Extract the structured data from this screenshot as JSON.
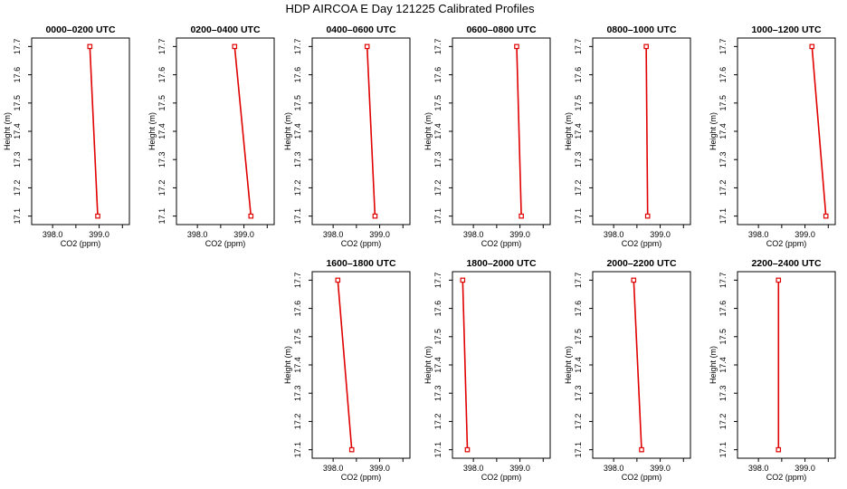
{
  "figure": {
    "title": "HDP AIRCOA E  Day 121225  Calibrated Profiles"
  },
  "chart_data": [
    {
      "type": "line",
      "title": "0000–0200 UTC",
      "xlabel": "CO2 (ppm)",
      "ylabel": "Height (m)",
      "xlim": [
        397.55,
        399.65
      ],
      "ylim": [
        17.07,
        17.73
      ],
      "xticks": [
        398.0,
        398.5,
        399.0,
        399.5
      ],
      "xtick_labels": [
        "398.0",
        "",
        "399.0",
        ""
      ],
      "yticks": [
        17.1,
        17.2,
        17.3,
        17.4,
        17.5,
        17.6,
        17.7
      ],
      "series": [
        {
          "color": "#e00000",
          "points": [
            {
              "x": 398.8,
              "y": 17.7
            },
            {
              "x": 398.97,
              "y": 17.1
            }
          ]
        }
      ]
    },
    {
      "type": "line",
      "title": "0200–0400 UTC",
      "xlabel": "CO2 (ppm)",
      "ylabel": "Height (m)",
      "xlim": [
        397.55,
        399.65
      ],
      "ylim": [
        17.07,
        17.73
      ],
      "xticks": [
        398.0,
        398.5,
        399.0,
        399.5
      ],
      "xtick_labels": [
        "398.0",
        "",
        "399.0",
        ""
      ],
      "yticks": [
        17.1,
        17.2,
        17.3,
        17.4,
        17.5,
        17.6,
        17.7
      ],
      "series": [
        {
          "color": "#e00000",
          "points": [
            {
              "x": 398.8,
              "y": 17.7
            },
            {
              "x": 399.15,
              "y": 17.1
            }
          ]
        }
      ]
    },
    {
      "type": "line",
      "title": "0400–0600 UTC",
      "xlabel": "CO2 (ppm)",
      "ylabel": "Height (m)",
      "xlim": [
        397.55,
        399.65
      ],
      "ylim": [
        17.07,
        17.73
      ],
      "xticks": [
        398.0,
        398.5,
        399.0,
        399.5
      ],
      "xtick_labels": [
        "398.0",
        "",
        "399.0",
        ""
      ],
      "yticks": [
        17.1,
        17.2,
        17.3,
        17.4,
        17.5,
        17.6,
        17.7
      ],
      "series": [
        {
          "color": "#e00000",
          "points": [
            {
              "x": 398.73,
              "y": 17.7
            },
            {
              "x": 398.9,
              "y": 17.1
            }
          ]
        }
      ]
    },
    {
      "type": "line",
      "title": "0600–0800 UTC",
      "xlabel": "CO2 (ppm)",
      "ylabel": "Height (m)",
      "xlim": [
        397.55,
        399.65
      ],
      "ylim": [
        17.07,
        17.73
      ],
      "xticks": [
        398.0,
        398.5,
        399.0,
        399.5
      ],
      "xtick_labels": [
        "398.0",
        "",
        "399.0",
        ""
      ],
      "yticks": [
        17.1,
        17.2,
        17.3,
        17.4,
        17.5,
        17.6,
        17.7
      ],
      "series": [
        {
          "color": "#e00000",
          "points": [
            {
              "x": 398.93,
              "y": 17.7
            },
            {
              "x": 399.03,
              "y": 17.1
            }
          ]
        }
      ]
    },
    {
      "type": "line",
      "title": "0800–1000 UTC",
      "xlabel": "CO2 (ppm)",
      "ylabel": "Height (m)",
      "xlim": [
        397.55,
        399.65
      ],
      "ylim": [
        17.07,
        17.73
      ],
      "xticks": [
        398.0,
        398.5,
        399.0,
        399.5
      ],
      "xtick_labels": [
        "398.0",
        "",
        "399.0",
        ""
      ],
      "yticks": [
        17.1,
        17.2,
        17.3,
        17.4,
        17.5,
        17.6,
        17.7
      ],
      "series": [
        {
          "color": "#e00000",
          "points": [
            {
              "x": 398.7,
              "y": 17.7
            },
            {
              "x": 398.73,
              "y": 17.1
            }
          ]
        }
      ]
    },
    {
      "type": "line",
      "title": "1000–1200 UTC",
      "xlabel": "CO2 (ppm)",
      "ylabel": "Height (m)",
      "xlim": [
        397.55,
        399.65
      ],
      "ylim": [
        17.07,
        17.73
      ],
      "xticks": [
        398.0,
        398.5,
        399.0,
        399.5
      ],
      "xtick_labels": [
        "398.0",
        "",
        "399.0",
        ""
      ],
      "yticks": [
        17.1,
        17.2,
        17.3,
        17.4,
        17.5,
        17.6,
        17.7
      ],
      "series": [
        {
          "color": "#e00000",
          "points": [
            {
              "x": 399.15,
              "y": 17.7
            },
            {
              "x": 399.45,
              "y": 17.1
            }
          ]
        }
      ]
    },
    {
      "type": "line",
      "title": "1600–1800 UTC",
      "xlabel": "CO2 (ppm)",
      "ylabel": "Height (m)",
      "xlim": [
        397.55,
        399.65
      ],
      "ylim": [
        17.07,
        17.73
      ],
      "xticks": [
        398.0,
        398.5,
        399.0,
        399.5
      ],
      "xtick_labels": [
        "398.0",
        "",
        "399.0",
        ""
      ],
      "yticks": [
        17.1,
        17.2,
        17.3,
        17.4,
        17.5,
        17.6,
        17.7
      ],
      "series": [
        {
          "color": "#e00000",
          "points": [
            {
              "x": 398.1,
              "y": 17.7
            },
            {
              "x": 398.4,
              "y": 17.1
            }
          ]
        }
      ]
    },
    {
      "type": "line",
      "title": "1800–2000 UTC",
      "xlabel": "CO2 (ppm)",
      "ylabel": "Height (m)",
      "xlim": [
        397.55,
        399.65
      ],
      "ylim": [
        17.07,
        17.73
      ],
      "xticks": [
        398.0,
        398.5,
        399.0,
        399.5
      ],
      "xtick_labels": [
        "398.0",
        "",
        "399.0",
        ""
      ],
      "yticks": [
        17.1,
        17.2,
        17.3,
        17.4,
        17.5,
        17.6,
        17.7
      ],
      "series": [
        {
          "color": "#e00000",
          "points": [
            {
              "x": 397.77,
              "y": 17.7
            },
            {
              "x": 397.87,
              "y": 17.1
            }
          ]
        }
      ]
    },
    {
      "type": "line",
      "title": "2000–2200 UTC",
      "xlabel": "CO2 (ppm)",
      "ylabel": "Height (m)",
      "xlim": [
        397.55,
        399.65
      ],
      "ylim": [
        17.07,
        17.73
      ],
      "xticks": [
        398.0,
        398.5,
        399.0,
        399.5
      ],
      "xtick_labels": [
        "398.0",
        "",
        "399.0",
        ""
      ],
      "yticks": [
        17.1,
        17.2,
        17.3,
        17.4,
        17.5,
        17.6,
        17.7
      ],
      "series": [
        {
          "color": "#e00000",
          "points": [
            {
              "x": 398.43,
              "y": 17.7
            },
            {
              "x": 398.6,
              "y": 17.1
            }
          ]
        }
      ]
    },
    {
      "type": "line",
      "title": "2200–2400 UTC",
      "xlabel": "CO2 (ppm)",
      "ylabel": "Height (m)",
      "xlim": [
        397.55,
        399.65
      ],
      "ylim": [
        17.07,
        17.73
      ],
      "xticks": [
        398.0,
        398.5,
        399.0,
        399.5
      ],
      "xtick_labels": [
        "398.0",
        "",
        "399.0",
        ""
      ],
      "yticks": [
        17.1,
        17.2,
        17.3,
        17.4,
        17.5,
        17.6,
        17.7
      ],
      "series": [
        {
          "color": "#e00000",
          "points": [
            {
              "x": 398.43,
              "y": 17.7
            },
            {
              "x": 398.43,
              "y": 17.1
            }
          ]
        }
      ]
    }
  ]
}
